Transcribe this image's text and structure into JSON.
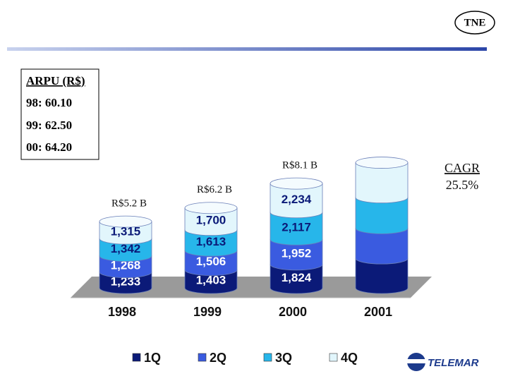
{
  "badge": "TNE",
  "arpu": {
    "title": "ARPU (R$)",
    "lines": [
      "98: 60.10",
      "99: 62.50",
      "00: 64.20"
    ]
  },
  "logo": "TELEMAR",
  "chart_data": {
    "type": "bar",
    "stacked": true,
    "categories": [
      "1998",
      "1999",
      "2000",
      "2001"
    ],
    "series": [
      {
        "name": "1Q",
        "color": "#0b1a78",
        "label_color": "#ffffff",
        "values": [
          1233,
          1403,
          1824,
          2300
        ],
        "value_labels": [
          "1,233",
          "1,403",
          "1,824",
          null
        ]
      },
      {
        "name": "2Q",
        "color": "#3a5be0",
        "label_color": "#ffffff",
        "values": [
          1268,
          1506,
          1952,
          2350
        ],
        "value_labels": [
          "1,268",
          "1,506",
          "1,952",
          null
        ]
      },
      {
        "name": "3Q",
        "color": "#27b6ea",
        "label_color": "#0b1a78",
        "values": [
          1342,
          1613,
          2117,
          2400
        ],
        "value_labels": [
          "1,342",
          "1,613",
          "2,117",
          null
        ]
      },
      {
        "name": "4Q",
        "color": "#e2f6fc",
        "label_color": "#0b1a78",
        "values": [
          1315,
          1700,
          2234,
          2700
        ],
        "value_labels": [
          "1,315",
          "1,700",
          "2,234",
          null
        ]
      }
    ],
    "annotations": [
      "R$5.2 B",
      "R$6.2 B",
      "R$8.1 B"
    ],
    "cagr_label": "CAGR",
    "cagr_value": "25.5%"
  }
}
